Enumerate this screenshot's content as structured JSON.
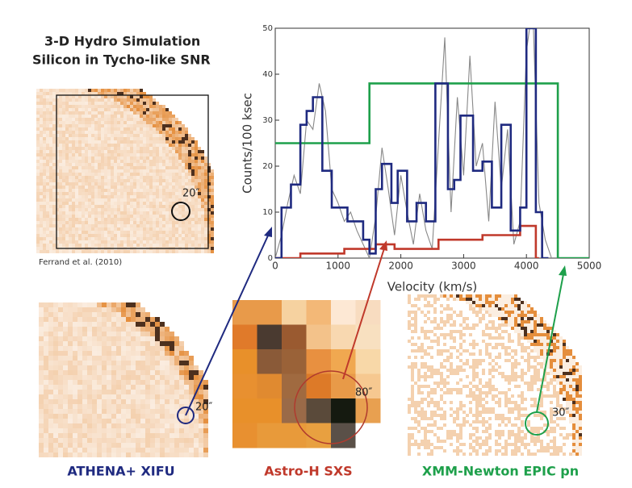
{
  "header": {
    "title_line1": "3-D Hydro Simulation",
    "title_line2": "Silicon in Tycho-like SNR",
    "credit": "Ferrand et al. (2010)",
    "sim_scale": "20″"
  },
  "panels": [
    {
      "caption": "ATHENA+ XIFU",
      "scale": "20″"
    },
    {
      "caption": "Astro-H SXS",
      "scale": "80″"
    },
    {
      "caption": "XMM-Newton EPIC pn",
      "scale": "30″"
    }
  ],
  "chart_data": {
    "type": "line",
    "xlabel": "Velocity (km/s)",
    "ylabel": "Counts/100 ksec",
    "xlim": [
      0,
      5000
    ],
    "ylim": [
      0,
      50
    ],
    "xticks": [
      0,
      1000,
      2000,
      3000,
      4000,
      5000
    ],
    "yticks": [
      0,
      10,
      20,
      30,
      40,
      50
    ],
    "series": [
      {
        "color": "#888888",
        "step": "none",
        "x": [
          0,
          100,
          200,
          300,
          400,
          500,
          600,
          700,
          800,
          900,
          1000,
          1100,
          1200,
          1300,
          1400,
          1500,
          1600,
          1700,
          1800,
          1900,
          2000,
          2100,
          2200,
          2300,
          2400,
          2500,
          2600,
          2700,
          2800,
          2900,
          3000,
          3100,
          3200,
          3300,
          3400,
          3500,
          3600,
          3700,
          3800,
          3900,
          4000,
          4100,
          4200,
          4300,
          4400
        ],
        "values": [
          0,
          5,
          12,
          18,
          14,
          30,
          28,
          38,
          32,
          15,
          12,
          8,
          10,
          6,
          3,
          0,
          9,
          24,
          15,
          5,
          18,
          10,
          3,
          14,
          6,
          2,
          25,
          48,
          10,
          35,
          18,
          44,
          20,
          25,
          8,
          34,
          15,
          28,
          3,
          8,
          45,
          55,
          12,
          4,
          0
        ]
      },
      {
        "color": "#1ea04b",
        "step": "post",
        "x": [
          0,
          1500,
          4500,
          5000
        ],
        "values": [
          25,
          38,
          0,
          0
        ]
      },
      {
        "color": "#c0392b",
        "step": "post",
        "x": [
          0,
          400,
          1000,
          1100,
          1600,
          1900,
          2600,
          3300,
          3900,
          4150,
          4200
        ],
        "values": [
          0,
          1,
          1,
          2,
          3,
          2,
          4,
          5,
          7,
          0,
          0
        ]
      },
      {
        "color": "#1f2a80",
        "step": "post",
        "x": [
          0,
          100,
          250,
          400,
          500,
          600,
          750,
          900,
          1150,
          1400,
          1500,
          1600,
          1700,
          1850,
          1950,
          2100,
          2250,
          2400,
          2550,
          2750,
          2850,
          2950,
          3150,
          3300,
          3450,
          3600,
          3750,
          3900,
          4000,
          4150,
          4250,
          4350
        ],
        "values": [
          0,
          11,
          16,
          29,
          32,
          35,
          19,
          11,
          8,
          4,
          1,
          15,
          20.5,
          12,
          19,
          8,
          12,
          8,
          38,
          15,
          17,
          31,
          19,
          21,
          11,
          29,
          6,
          11,
          50,
          10,
          0,
          0
        ]
      }
    ]
  }
}
